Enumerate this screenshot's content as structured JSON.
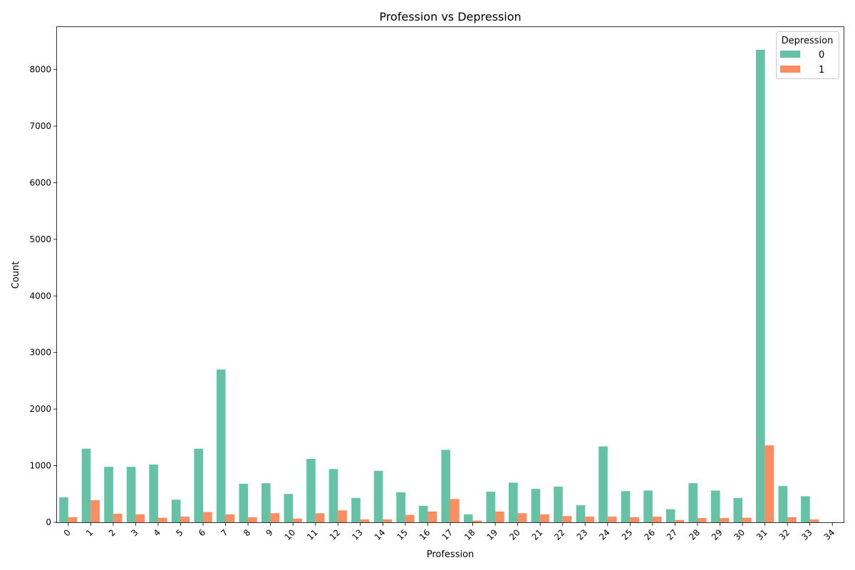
{
  "chart_data": {
    "type": "bar",
    "title": "Profession vs Depression",
    "xlabel": "Profession",
    "ylabel": "Count",
    "ylim": [
      0,
      8750
    ],
    "yticks": [
      0,
      1000,
      2000,
      3000,
      4000,
      5000,
      6000,
      7000,
      8000
    ],
    "categories": [
      "0",
      "1",
      "2",
      "3",
      "4",
      "5",
      "6",
      "7",
      "8",
      "9",
      "10",
      "11",
      "12",
      "13",
      "14",
      "15",
      "16",
      "17",
      "18",
      "19",
      "20",
      "21",
      "22",
      "23",
      "24",
      "25",
      "26",
      "27",
      "28",
      "29",
      "30",
      "31",
      "32",
      "33",
      "34"
    ],
    "legend": {
      "title": "Depression",
      "placement": "top-right"
    },
    "grid": false,
    "series": [
      {
        "name": "0",
        "color": "#66c2a5",
        "values": [
          440,
          1300,
          980,
          980,
          1020,
          400,
          1300,
          2700,
          680,
          690,
          500,
          1120,
          940,
          430,
          910,
          530,
          290,
          1280,
          140,
          540,
          700,
          590,
          630,
          300,
          1340,
          550,
          560,
          230,
          690,
          560,
          430,
          8350,
          640,
          460,
          0
        ]
      },
      {
        "name": "1",
        "color": "#fc8d62",
        "values": [
          90,
          390,
          150,
          140,
          80,
          100,
          180,
          140,
          90,
          160,
          65,
          160,
          210,
          50,
          50,
          130,
          190,
          410,
          30,
          190,
          160,
          140,
          110,
          100,
          100,
          90,
          100,
          40,
          75,
          75,
          80,
          1360,
          90,
          50,
          0
        ]
      }
    ]
  }
}
